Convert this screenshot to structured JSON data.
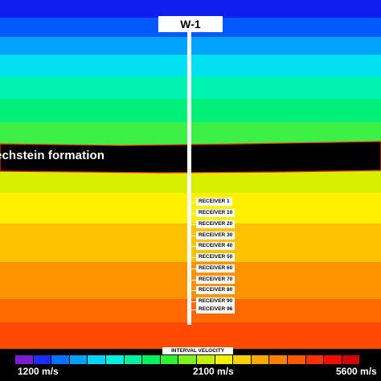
{
  "well": {
    "name": "W-1"
  },
  "formation": {
    "label": "echstein formation"
  },
  "receivers": [
    "RECEIVER 1",
    "RECEIVER 10",
    "RECEIVER 20",
    "RECEIVER 30",
    "RECEIVER 40",
    "RECEIVER 50",
    "RECEIVER 60",
    "RECEIVER 70",
    "RECEIVER 80",
    "RECEIVER 90",
    "RECEIVER 96"
  ],
  "layers": [
    {
      "color": "#0f1ff0"
    },
    {
      "color": "#0058ff"
    },
    {
      "color": "#00a4ff"
    },
    {
      "color": "#00e0f0"
    },
    {
      "color": "#00f2b0"
    },
    {
      "color": "#00f07a"
    },
    {
      "color": "#3cf046"
    },
    {
      "color": "#9af022"
    },
    {
      "color": "#000000"
    },
    {
      "color": "#d8ef00"
    },
    {
      "color": "#fff000"
    },
    {
      "color": "#ffc200"
    },
    {
      "color": "#ff9400"
    },
    {
      "color": "#ff6a00"
    },
    {
      "color": "#ff4a00"
    },
    {
      "color": "#ff1f00"
    }
  ],
  "colorbar": {
    "title": "INTERVAL VELOCITY",
    "min_label": "1200 m/s",
    "mid_label": "2100 m/s",
    "max_label": "5600 m/s",
    "colors": [
      "#7a1fd0",
      "#1e2dff",
      "#0074ff",
      "#00a0ff",
      "#00d4ff",
      "#00f0e0",
      "#00f0a0",
      "#00f060",
      "#30f030",
      "#80f020",
      "#c0f000",
      "#f0f000",
      "#ffd000",
      "#ffa800",
      "#ff8000",
      "#ff5a00",
      "#ff3000",
      "#f01000",
      "#d00000",
      "#000000"
    ]
  }
}
